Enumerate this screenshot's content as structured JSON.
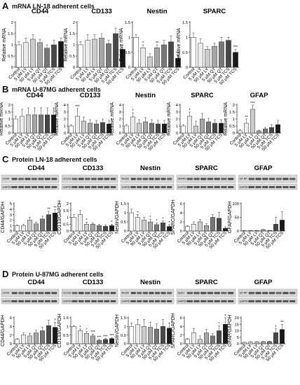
{
  "panels": [
    {
      "letter": "A",
      "title": "mRNA LN-18 adherent cells"
    },
    {
      "letter": "B",
      "title": "mRNA U-87MG adherent cells"
    },
    {
      "letter": "C",
      "title": "Protein LN-18 adherent cells"
    },
    {
      "letter": "D",
      "title": "Protein U-87MG adherent cells"
    }
  ],
  "blot_labels": {
    "row_c": [
      "CD44",
      "CD133",
      "Nestin",
      "SPARC",
      "GF AP"
    ],
    "row_d": [
      "CD44",
      "CD133",
      "Nestin",
      "Sparc",
      "GF AP"
    ],
    "gapdh": "GAPDH"
  },
  "colors": {
    "bars": [
      "#ffffff",
      "#ececec",
      "#cccccc",
      "#a6a6a6",
      "#777777",
      "#474747",
      "#1a1a1a"
    ],
    "axis": "#222222",
    "blot_bg": "#d6d6d6",
    "blot_band": "#2a2a2a"
  },
  "chart_data": [
    {
      "type": "bar",
      "row": "A",
      "title": "CD44",
      "ylabel": "Relative mRNA",
      "categories": [
        "Control",
        "5 μM LY",
        "50 μM LY",
        "5 μM QT",
        "50 μM QT",
        "5 μM TCS",
        "50 μM TCS"
      ],
      "values": [
        1.0,
        1.1,
        1.25,
        1.1,
        0.85,
        1.0,
        1.15
      ],
      "errors": [
        0.15,
        0.2,
        0.2,
        0.15,
        0.15,
        0.2,
        0.15
      ],
      "stars": [
        "",
        "",
        "",
        "",
        "",
        "",
        ""
      ],
      "yticks": [
        "0",
        "0.5",
        "1",
        "1.5",
        "2"
      ],
      "ylim": [
        0,
        2
      ]
    },
    {
      "type": "bar",
      "row": "A",
      "title": "CD133",
      "ylabel": "Relative mRNA",
      "categories": [
        "Control",
        "5 μM LY",
        "50 μM LY",
        "5 μM QT",
        "50 μM QT",
        "5 μM TCS",
        "50 μM TCS"
      ],
      "values": [
        1.0,
        1.2,
        1.25,
        1.3,
        1.05,
        1.5,
        0.8
      ],
      "errors": [
        0.15,
        0.25,
        0.2,
        0.2,
        0.15,
        0.25,
        0.2
      ],
      "stars": [
        "",
        "",
        "",
        "",
        "",
        "",
        ""
      ],
      "yticks": [
        "0",
        "0.5",
        "1",
        "1.5",
        "2"
      ],
      "ylim": [
        0,
        2
      ]
    },
    {
      "type": "bar",
      "row": "A",
      "title": "Nestin",
      "ylabel": "Relative mRNA",
      "categories": [
        "Control",
        "5 μM LY",
        "50 μM LY",
        "5 μM QT",
        "50 μM QT",
        "5 μM TCS",
        "50 μM TCS"
      ],
      "values": [
        1.0,
        0.65,
        0.35,
        0.65,
        0.75,
        0.85,
        0.3
      ],
      "errors": [
        0.1,
        0.1,
        0.1,
        0.1,
        0.15,
        0.2,
        0.1
      ],
      "stars": [
        "",
        "*",
        "",
        "**",
        "",
        "",
        "***"
      ],
      "yticks": [
        "0",
        "0.5",
        "1",
        "1.5"
      ],
      "ylim": [
        0,
        1.5
      ]
    },
    {
      "type": "bar",
      "row": "A",
      "title": "SPARC",
      "ylabel": "Relative mRNA",
      "categories": [
        "Control",
        "5 μM LY",
        "50 μM LY",
        "5 μM QT",
        "50 μM QT",
        "5 μM TCS",
        "50 μM TCS"
      ],
      "values": [
        1.0,
        0.8,
        0.6,
        0.7,
        0.85,
        0.9,
        0.5
      ],
      "errors": [
        0.15,
        0.15,
        0.1,
        0.1,
        0.15,
        0.1,
        0.1
      ],
      "stars": [
        "",
        "",
        "",
        "",
        "",
        "",
        "***"
      ],
      "yticks": [
        "0",
        "0.5",
        "1",
        "1.5"
      ],
      "ylim": [
        0,
        1.5
      ]
    },
    {
      "type": "bar",
      "row": "B",
      "title": "CD44",
      "ylabel": "Relative mRNA",
      "categories": [
        "Control",
        "5 μM LY",
        "50 μM LY",
        "5 μM QT",
        "50 μM QT",
        "5 μM TCS",
        "50 μM TCS"
      ],
      "values": [
        1.0,
        1.2,
        1.3,
        1.3,
        1.3,
        1.3,
        1.3
      ],
      "errors": [
        0.2,
        0.5,
        0.5,
        0.5,
        0.5,
        0.5,
        0.5
      ],
      "stars": [
        "",
        "",
        "",
        "",
        "",
        "",
        ""
      ],
      "yticks": [
        "0",
        "0.5",
        "1",
        "1.5",
        "2"
      ],
      "ylim": [
        0,
        2
      ]
    },
    {
      "type": "bar",
      "row": "B",
      "title": "CD133",
      "ylabel": "Relative mRNA",
      "categories": [
        "Control",
        "5 μM LY",
        "50 μM LY",
        "5 μM QT",
        "50 μM QT",
        "5 μM TCS",
        "50 μM TCS"
      ],
      "values": [
        1.0,
        2.4,
        1.7,
        1.4,
        1.3,
        1.5,
        1.3
      ],
      "errors": [
        0.2,
        1.1,
        0.6,
        0.5,
        0.5,
        0.5,
        0.5
      ],
      "stars": [
        "",
        "***",
        "",
        "",
        "",
        "",
        ""
      ],
      "yticks": [
        "0",
        "1",
        "2",
        "3",
        "4"
      ],
      "ylim": [
        0,
        4
      ]
    },
    {
      "type": "bar",
      "row": "B",
      "title": "Nestin",
      "ylabel": "Relative mRNA",
      "categories": [
        "Control",
        "5 μM LY",
        "50 μM LY",
        "5 μM QT",
        "50 μM QT",
        "5 μM TCS",
        "50 μM TCS"
      ],
      "values": [
        1.0,
        2.3,
        1.4,
        1.6,
        1.4,
        1.3,
        1.3
      ],
      "errors": [
        0.2,
        0.6,
        0.5,
        0.6,
        0.5,
        0.5,
        0.5
      ],
      "stars": [
        "",
        "*",
        "",
        "",
        "",
        "",
        ""
      ],
      "yticks": [
        "0",
        "1",
        "2",
        "3",
        "4"
      ],
      "ylim": [
        0,
        4
      ]
    },
    {
      "type": "bar",
      "row": "B",
      "title": "SPARC",
      "ylabel": "Relative mRNA",
      "categories": [
        "Control",
        "5 μM LY",
        "50 μM LY",
        "5 μM QT",
        "50 μM QT",
        "5 μM TCS",
        "50 μM TCS"
      ],
      "values": [
        1.0,
        2.4,
        1.0,
        2.0,
        1.6,
        1.4,
        1.4
      ],
      "errors": [
        0.2,
        0.6,
        0.7,
        0.8,
        0.5,
        0.5,
        0.5
      ],
      "stars": [
        "",
        "*",
        "",
        "",
        "",
        "",
        ""
      ],
      "yticks": [
        "0",
        "1",
        "2",
        "3",
        "4"
      ],
      "ylim": [
        0,
        4
      ]
    },
    {
      "type": "bar",
      "row": "B",
      "title": "GFAP",
      "ylabel": "Relative mRNA",
      "categories": [
        "Control",
        "5 μM LY",
        "50 μM LY",
        "5 μM QT",
        "50 μM QT",
        "5 μM TCS",
        "50 μM TCS"
      ],
      "values": [
        0.15,
        0.7,
        1.7,
        0.15,
        0.3,
        0.4,
        0.6
      ],
      "errors": [
        0.1,
        0.3,
        0.4,
        0.05,
        0.1,
        0.2,
        0.3
      ],
      "stars": [
        "",
        "**",
        "***",
        "",
        "",
        "",
        ""
      ],
      "yticks": [
        "0",
        "0.5",
        "1",
        "1.5",
        "2"
      ],
      "ylim": [
        0,
        2
      ]
    },
    {
      "type": "bar",
      "row": "C",
      "title": "CD44",
      "ylabel": "CD44/GAPDH",
      "categories": [
        "Control",
        "5 μM LY",
        "50 μM LY",
        "5 μM QT",
        "50 μM QT",
        "5 μM TCS",
        "50 μM TCS"
      ],
      "values": [
        1.0,
        1.0,
        2.0,
        1.3,
        2.2,
        3.0,
        3.3
      ],
      "errors": [
        0.1,
        0.2,
        0.5,
        0.3,
        0.5,
        0.6,
        0.6
      ],
      "stars": [
        "",
        "",
        "",
        "",
        "",
        "**",
        "**"
      ],
      "yticks": [
        "0",
        "1",
        "2",
        "3",
        "4",
        "5"
      ],
      "ylim": [
        0,
        5
      ]
    },
    {
      "type": "bar",
      "row": "C",
      "title": "CD133",
      "ylabel": "CD133/GAPDH",
      "categories": [
        "Control",
        "5 μM LY",
        "50 μM LY",
        "5 μM QT",
        "50 μM QT",
        "5 μM TCS",
        "50 μM TCS"
      ],
      "values": [
        1.0,
        1.2,
        0.5,
        0.5,
        0.4,
        0.35,
        0.4
      ],
      "errors": [
        0.2,
        0.3,
        0.15,
        0.1,
        0.1,
        0.1,
        0.1
      ],
      "stars": [
        "",
        "",
        "*",
        "",
        "",
        "",
        "*"
      ],
      "yticks": [
        "0",
        "0.5",
        "1",
        "1.5",
        "2"
      ],
      "ylim": [
        0,
        2
      ]
    },
    {
      "type": "bar",
      "row": "C",
      "title": "Nestin",
      "ylabel": "Nestin/GAPDH",
      "categories": [
        "Control",
        "5 μM LY",
        "50 μM LY",
        "5 μM QT",
        "50 μM QT",
        "5 μM TCS",
        "50 μM TCS"
      ],
      "values": [
        1.0,
        0.75,
        0.6,
        0.5,
        0.35,
        0.45,
        0.25
      ],
      "errors": [
        0.2,
        0.15,
        0.15,
        0.15,
        0.1,
        0.1,
        0.1
      ],
      "stars": [
        "",
        "*",
        "",
        "*",
        "*",
        "*",
        "*"
      ],
      "yticks": [
        "0",
        "0.5",
        "1",
        "1.5"
      ],
      "ylim": [
        0,
        1.5
      ]
    },
    {
      "type": "bar",
      "row": "C",
      "title": "SPARC",
      "ylabel": "SPARC/GAPDH",
      "categories": [
        "Control",
        "5 μM LY",
        "50 μM LY",
        "5 μM QT",
        "50 μM QT",
        "5 μM TCS",
        "50 μM TCS"
      ],
      "values": [
        1.0,
        1.5,
        2.0,
        1.2,
        3.0,
        2.8,
        0.6
      ],
      "errors": [
        0.2,
        0.5,
        0.5,
        0.4,
        0.6,
        1.3,
        0.3
      ],
      "stars": [
        "",
        "",
        "",
        "",
        "",
        "",
        ""
      ],
      "yticks": [
        "0",
        "2",
        "4",
        "6"
      ],
      "ylim": [
        0,
        6
      ]
    },
    {
      "type": "bar",
      "row": "C",
      "title": "GFAP",
      "ylabel": "GFAP/GAPDH",
      "categories": [
        "Control",
        "5 μM LY",
        "50 μM LY",
        "5 μM QT",
        "50 μM QT",
        "5 μM TCS",
        "50 μM TCS"
      ],
      "values": [
        1.0,
        2.0,
        2.0,
        5.0,
        2.0,
        25,
        40
      ],
      "errors": [
        0.5,
        0.5,
        0.5,
        1.0,
        0.5,
        25,
        30
      ],
      "stars": [
        "",
        "",
        "",
        "",
        "",
        "",
        ""
      ],
      "yticks": [
        "0",
        "50",
        "100"
      ],
      "ylim": [
        0,
        100
      ]
    },
    {
      "type": "bar",
      "row": "D",
      "title": "CD44",
      "ylabel": "CD44/GAPDH",
      "categories": [
        "Control",
        "5 μM LY",
        "50 μM LY",
        "5 μM QT",
        "50 μM QT",
        "5 μM TCS",
        "50 μM TCS"
      ],
      "values": [
        1.0,
        2.0,
        1.8,
        2.5,
        3.0,
        4.2,
        3.8
      ],
      "errors": [
        0.2,
        0.5,
        0.6,
        0.6,
        0.8,
        1.2,
        1.2
      ],
      "stars": [
        "",
        "",
        "",
        "",
        "",
        "",
        "*"
      ],
      "yticks": [
        "0",
        "2",
        "4",
        "6"
      ],
      "ylim": [
        0,
        6
      ]
    },
    {
      "type": "bar",
      "row": "D",
      "title": "CD133",
      "ylabel": "CD133/GAPDH",
      "categories": [
        "Control",
        "5 μM LY",
        "50 μM LY",
        "5 μM QT",
        "50 μM QT",
        "5 μM TCS",
        "50 μM TCS"
      ],
      "values": [
        1.0,
        0.75,
        0.6,
        0.45,
        0.2,
        0.25,
        0.3
      ],
      "errors": [
        0.05,
        0.1,
        0.1,
        0.1,
        0.05,
        0.05,
        0.05
      ],
      "stars": [
        "",
        "*",
        "*",
        "***",
        "***",
        "***",
        "***"
      ],
      "yticks": [
        "0",
        "0.5",
        "1",
        "1.5"
      ],
      "ylim": [
        0,
        1.5
      ]
    },
    {
      "type": "bar",
      "row": "D",
      "title": "Nestin",
      "ylabel": "Nestin/GAPDH",
      "categories": [
        "Control",
        "5 μM LY",
        "50 μM LY",
        "5 μM QT",
        "50 μM QT",
        "5 μM TCS",
        "50 μM TCS"
      ],
      "values": [
        1.0,
        1.1,
        1.0,
        0.95,
        0.85,
        1.0,
        0.9
      ],
      "errors": [
        0.2,
        0.3,
        0.4,
        0.3,
        0.3,
        0.4,
        0.3
      ],
      "stars": [
        "",
        "",
        "",
        "",
        "",
        "",
        ""
      ],
      "yticks": [
        "0",
        "0.5",
        "1",
        "1.5"
      ],
      "ylim": [
        0,
        1.5
      ]
    },
    {
      "type": "bar",
      "row": "D",
      "title": "SPARC",
      "ylabel": "SPARC/GAPDH",
      "categories": [
        "Control",
        "5 μM LY",
        "50 μM LY",
        "5 μM QT",
        "50 μM QT",
        "5 μM TCS",
        "50 μM TCS"
      ],
      "values": [
        1.0,
        2.5,
        1.0,
        2.5,
        1.8,
        3.0,
        4.5
      ],
      "errors": [
        0.2,
        1.0,
        0.8,
        0.8,
        0.6,
        1.2,
        1.5
      ],
      "stars": [
        "",
        "",
        "",
        "",
        "",
        "*",
        "*"
      ],
      "yticks": [
        "0",
        "2",
        "4",
        "6"
      ],
      "ylim": [
        0,
        6
      ]
    },
    {
      "type": "bar",
      "row": "D",
      "title": "GFAP",
      "ylabel": "GFAP/GAPDH",
      "categories": [
        "Control",
        "5 μM LY",
        "50 μM LY",
        "5 μM QT",
        "50 μM QT",
        "5 μM TCS",
        "50 μM TCS"
      ],
      "values": [
        1.0,
        1.2,
        1.3,
        1.5,
        1.6,
        8.5,
        11.0
      ],
      "errors": [
        0.2,
        0.3,
        0.3,
        0.3,
        0.4,
        3.0,
        4.0
      ],
      "stars": [
        "",
        "",
        "",
        "",
        "",
        "*",
        "**"
      ],
      "yticks": [
        "0",
        "5",
        "10",
        "15",
        "20"
      ],
      "ylim": [
        0,
        20
      ]
    }
  ]
}
